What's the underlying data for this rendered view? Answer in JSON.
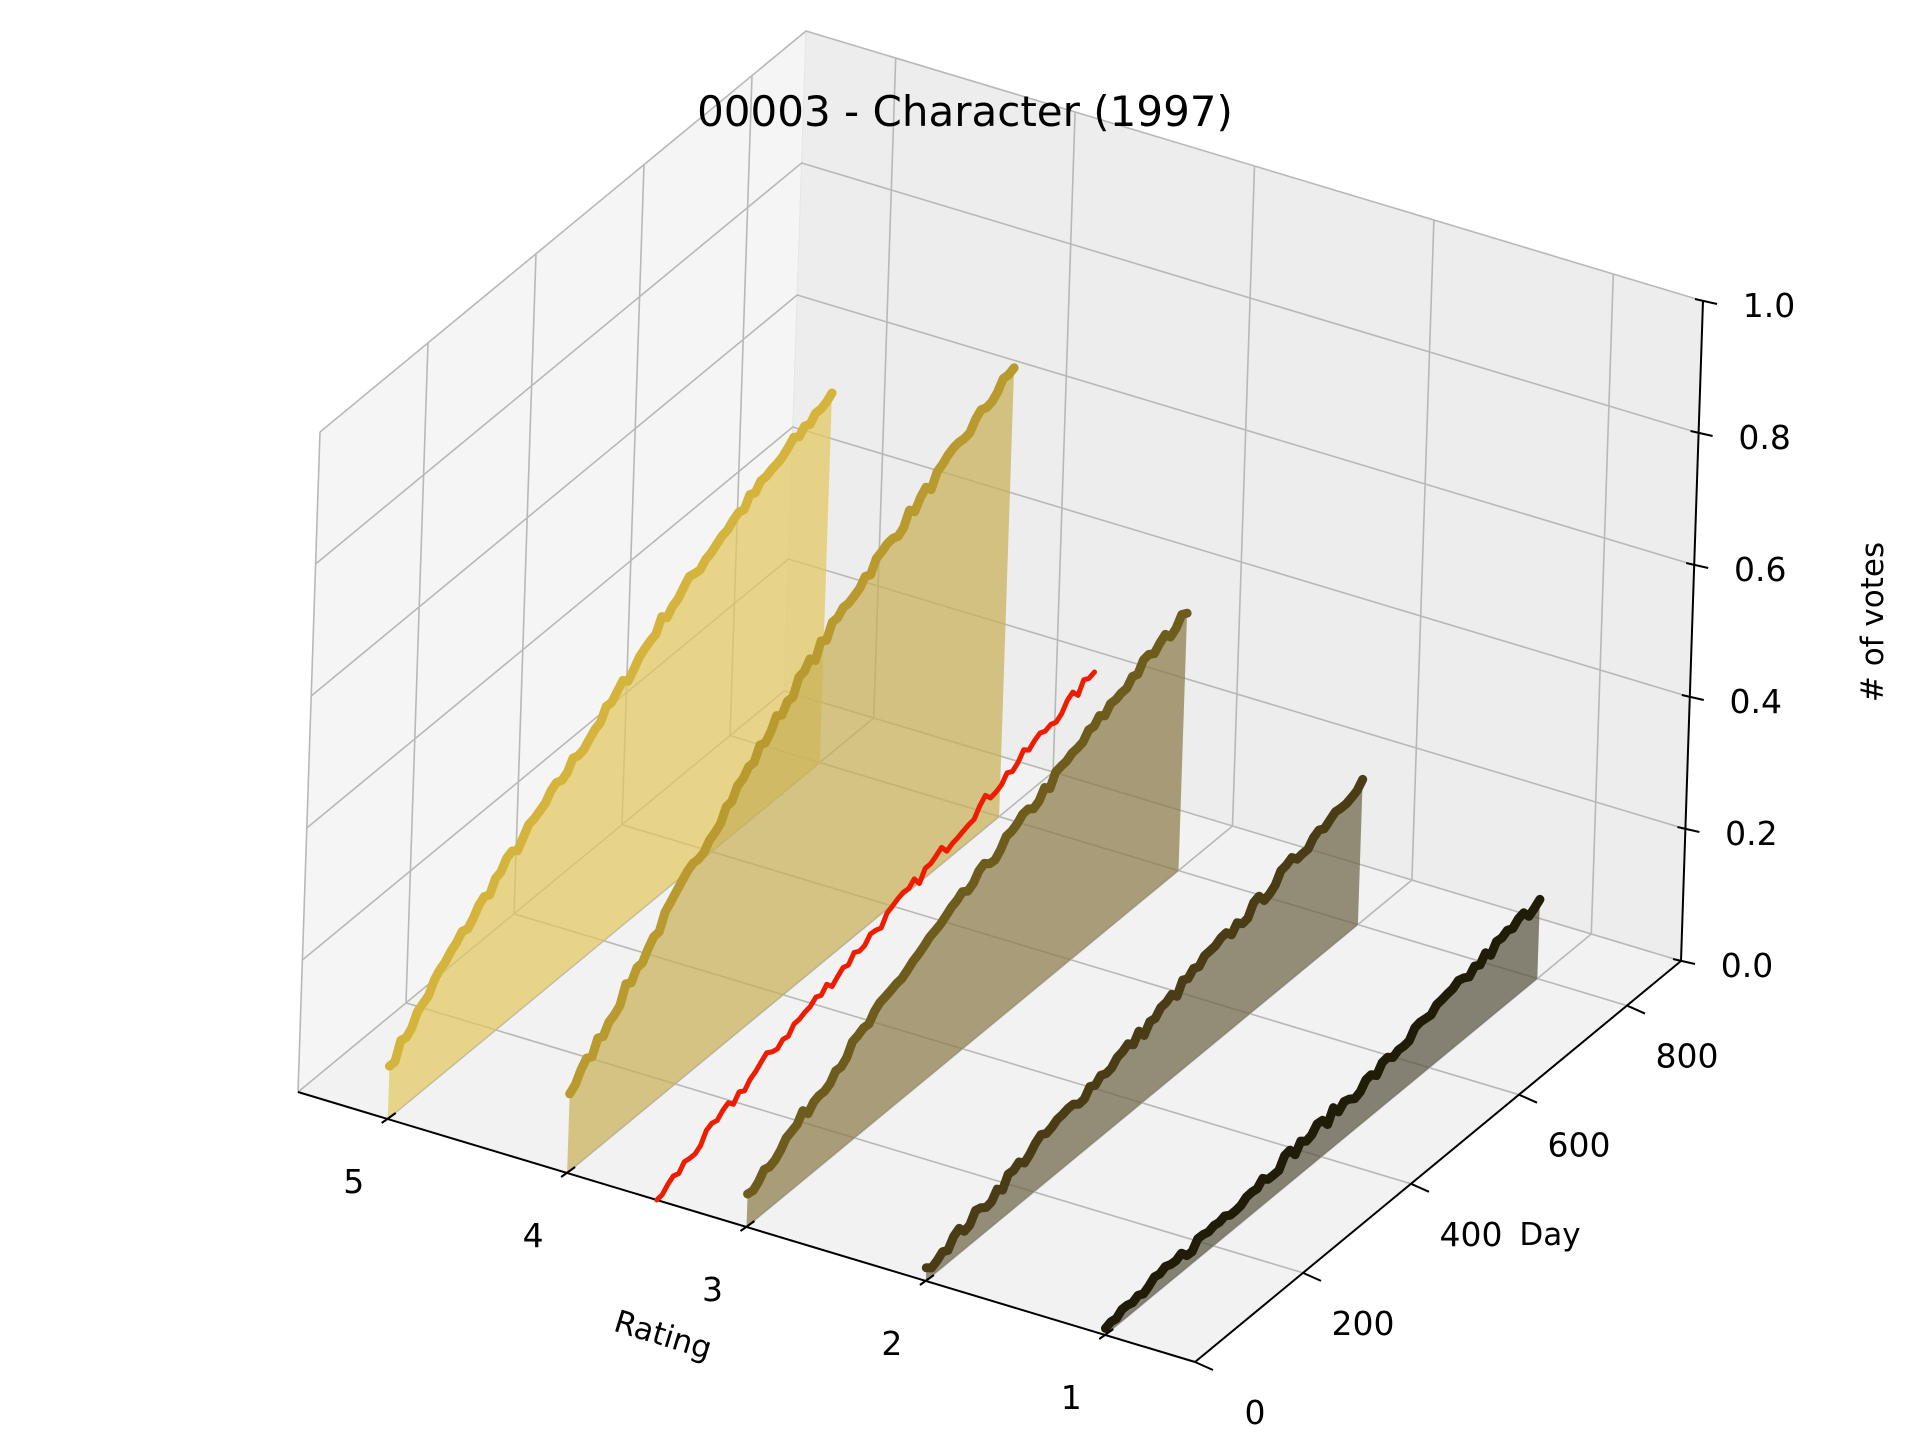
{
  "chart_data": {
    "type": "line",
    "title": "00003 - Character (1997)",
    "xlabel": "Rating",
    "ylabel": "Day",
    "zlabel": "# of votes",
    "x_ticks": [
      "5",
      "4",
      "3",
      "2",
      "1"
    ],
    "y_ticks": [
      "0",
      "200",
      "400",
      "600",
      "800"
    ],
    "z_ticks": [
      "0.0",
      "0.2",
      "0.4",
      "0.6",
      "0.8",
      "1.0"
    ],
    "xlim": [
      0.5,
      5.5
    ],
    "ylim": [
      0,
      900
    ],
    "zlim": [
      0,
      1
    ],
    "grid": true,
    "series": [
      {
        "rating": 5,
        "color": "#d4b43c",
        "fill": "#e2c860",
        "x": [
          0,
          100,
          200,
          300,
          400,
          500,
          600,
          700,
          800
        ],
        "values": [
          0.08,
          0.17,
          0.24,
          0.3,
          0.36,
          0.43,
          0.48,
          0.52,
          0.56
        ]
      },
      {
        "rating": 4,
        "color": "#b89a2e",
        "fill": "#c8b058",
        "x": [
          0,
          100,
          200,
          300,
          400,
          500,
          600,
          700,
          800
        ],
        "values": [
          0.12,
          0.21,
          0.3,
          0.38,
          0.46,
          0.53,
          0.58,
          0.63,
          0.68
        ]
      },
      {
        "rating": 3,
        "color": "#6e5c1c",
        "fill": "#8a7c48",
        "x": [
          0,
          100,
          200,
          300,
          400,
          500,
          600,
          700,
          800
        ],
        "values": [
          0.05,
          0.1,
          0.15,
          0.2,
          0.24,
          0.28,
          0.32,
          0.36,
          0.39
        ]
      },
      {
        "rating": 2,
        "color": "#4a3d16",
        "fill": "#6e6548",
        "x": [
          0,
          100,
          200,
          300,
          400,
          500,
          600,
          700,
          800
        ],
        "values": [
          0.02,
          0.04,
          0.07,
          0.09,
          0.11,
          0.14,
          0.16,
          0.19,
          0.22
        ]
      },
      {
        "rating": 1,
        "color": "#201c08",
        "fill": "#5a5540",
        "x": [
          0,
          100,
          200,
          300,
          400,
          500,
          600,
          700,
          800
        ],
        "values": [
          0.01,
          0.02,
          0.03,
          0.04,
          0.05,
          0.06,
          0.08,
          0.1,
          0.12
        ]
      },
      {
        "rating": 3.5,
        "color": "#ee1c00",
        "fill": null,
        "x": [
          0,
          100,
          200,
          300,
          400,
          500,
          600,
          700,
          800
        ],
        "values": [
          0.0,
          0.04,
          0.08,
          0.11,
          0.14,
          0.17,
          0.2,
          0.23,
          0.26
        ]
      }
    ]
  }
}
